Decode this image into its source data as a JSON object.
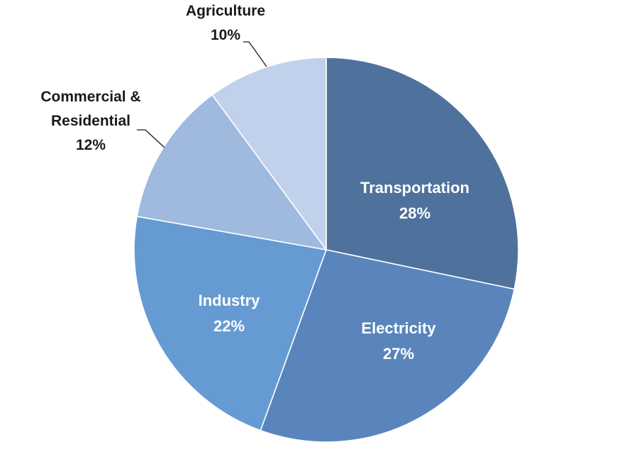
{
  "chart_data": {
    "type": "pie",
    "title": "",
    "slices": [
      {
        "category": "Transportation",
        "category_lines": [
          "Transportation"
        ],
        "value": 28,
        "value_label": "28%",
        "color": "#4e729c"
      },
      {
        "category": "Electricity",
        "category_lines": [
          "Electricity"
        ],
        "value": 27,
        "value_label": "27%",
        "color": "#5985bc"
      },
      {
        "category": "Industry",
        "category_lines": [
          "Industry"
        ],
        "value": 22,
        "value_label": "22%",
        "color": "#659bd2"
      },
      {
        "category": "Commercial & Residential",
        "category_lines": [
          "Commercial &",
          "Residential"
        ],
        "value": 12,
        "value_label": "12%",
        "color": "#9fb9df"
      },
      {
        "category": "Agriculture",
        "category_lines": [
          "Agriculture"
        ],
        "value": 10,
        "value_label": "10%",
        "color": "#c2d1eb"
      }
    ],
    "start_angle_deg": 0,
    "direction": "clockwise",
    "legend": "none",
    "labels": "category-and-percent"
  }
}
